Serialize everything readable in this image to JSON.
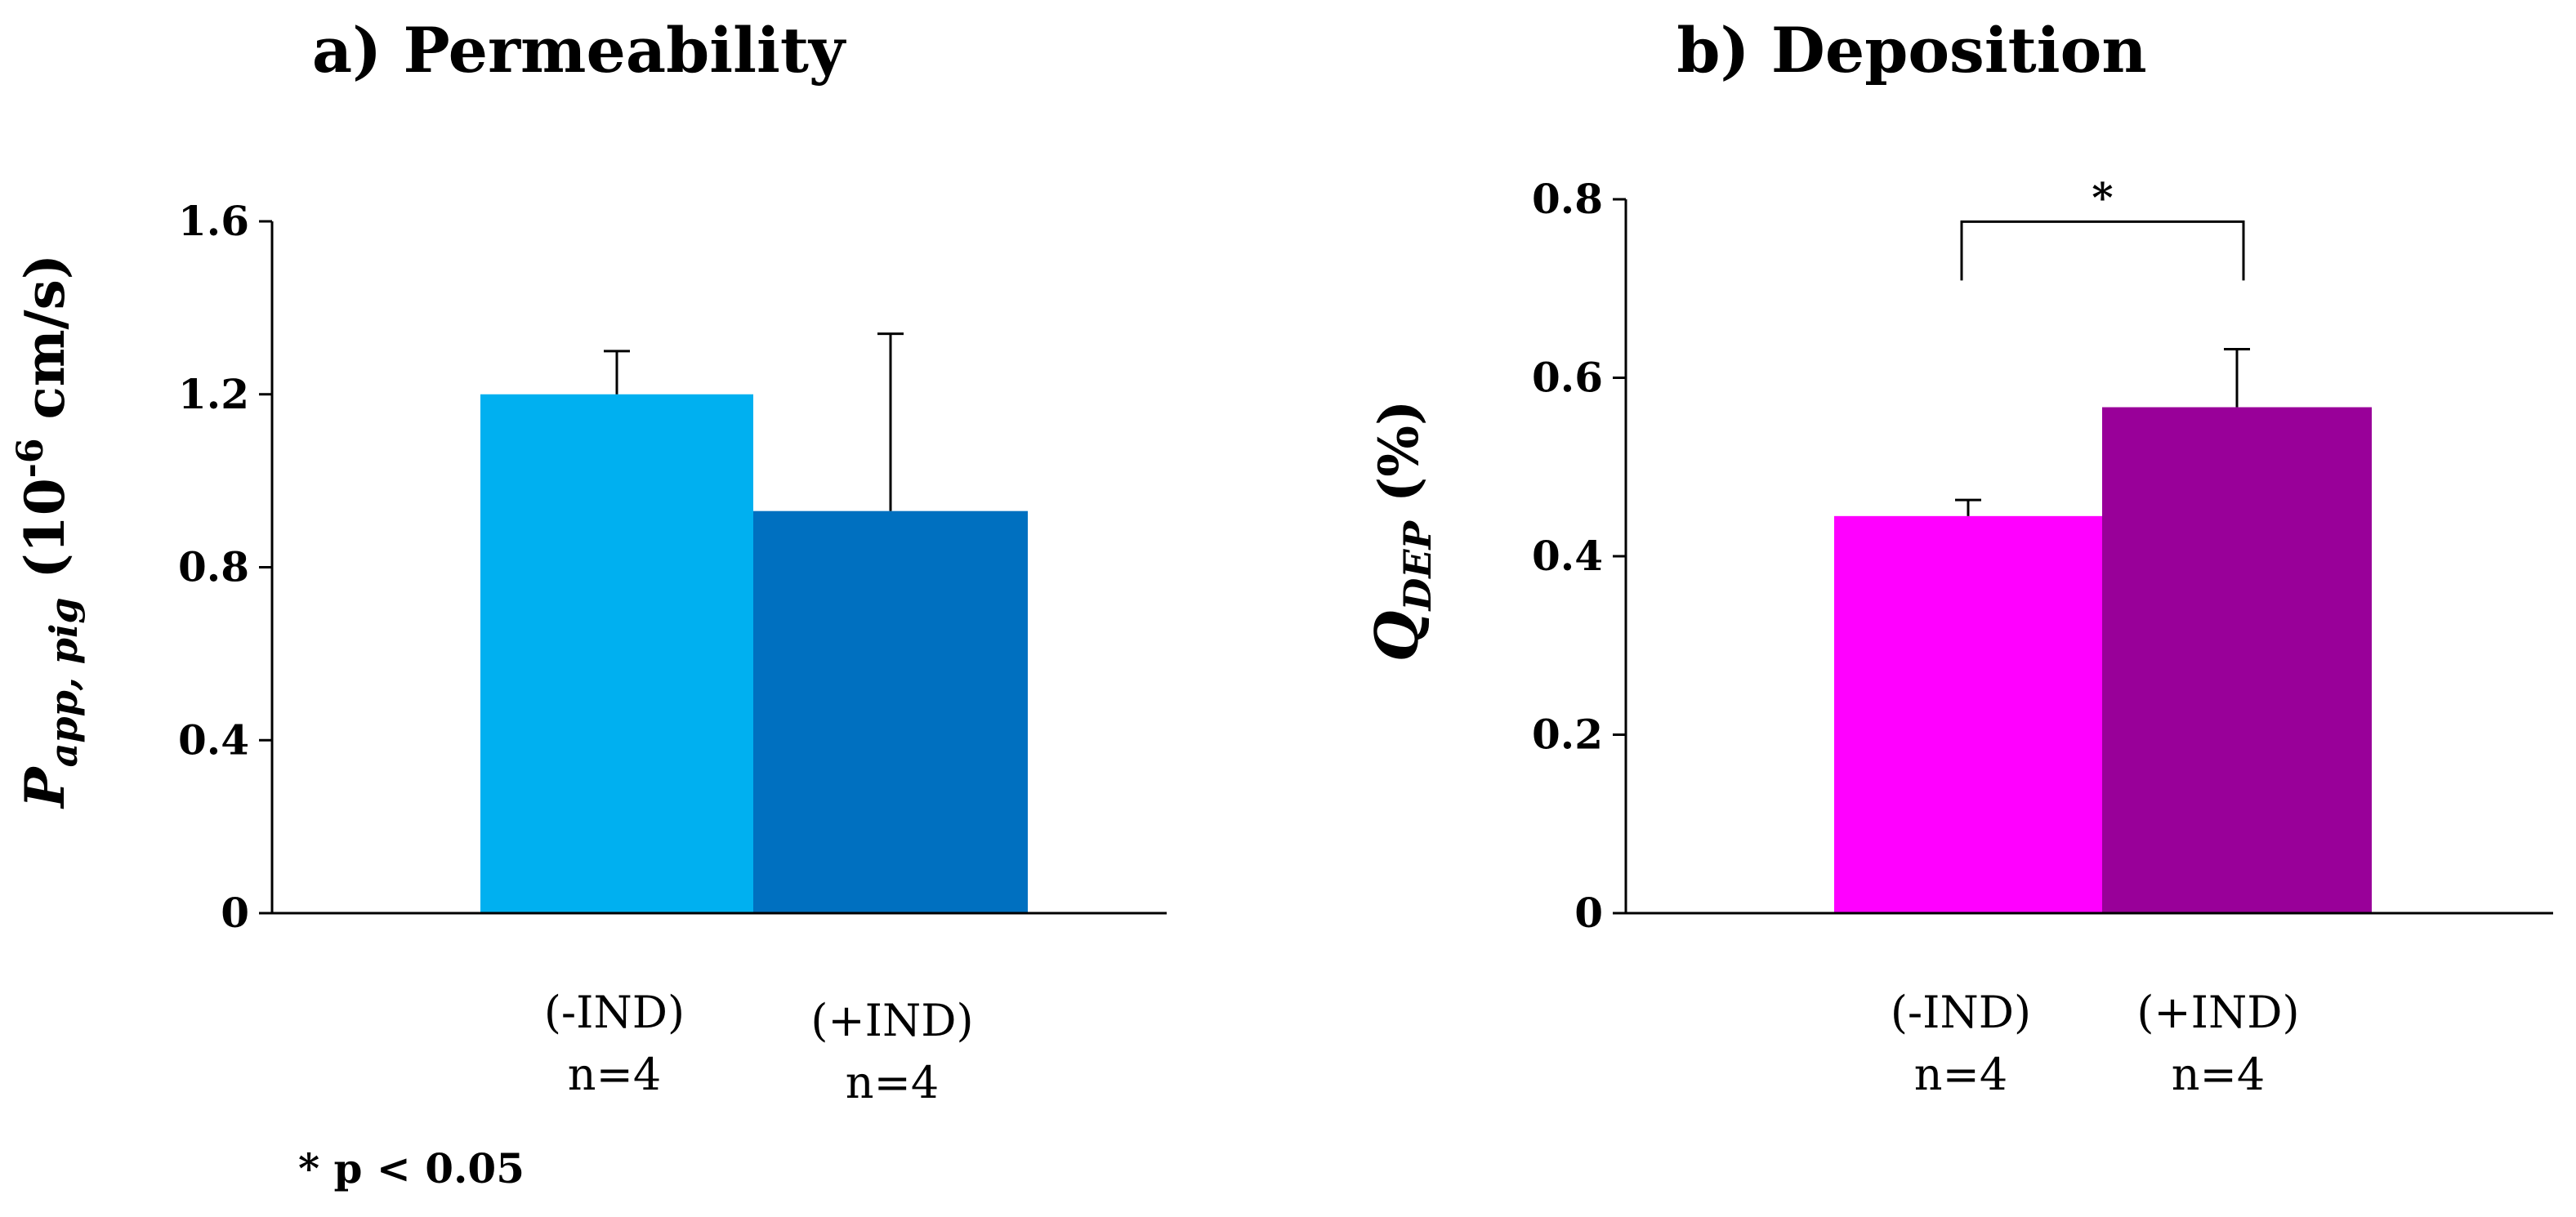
{
  "footnote": "* p < 0.05",
  "chart_data": [
    {
      "type": "bar",
      "title": "a) Permeability",
      "ylabel": {
        "main": "P",
        "subscript": "app, pig",
        "unit_prefix": " (10",
        "superscript": "-6",
        "unit_suffix": " cm/s)"
      },
      "xlabel": "",
      "categories": [
        "(-IND)",
        "(+IND)"
      ],
      "sample_sizes": [
        "n=4",
        "n=4"
      ],
      "values": [
        1.2,
        0.93
      ],
      "errors": [
        0.1,
        0.41
      ],
      "colors": [
        "#00B0F0",
        "#0070C0"
      ],
      "ylim": [
        0,
        1.6
      ],
      "yticks": [
        0,
        0.4,
        0.8,
        1.2,
        1.6
      ],
      "ytick_labels": [
        "0",
        "0.4",
        "0.8",
        "1.2",
        "1.6"
      ],
      "grid": false
    },
    {
      "type": "bar",
      "title": "b) Deposition",
      "ylabel": {
        "main": "Q",
        "subscript": "DEP",
        "unit": " (%)"
      },
      "xlabel": "",
      "categories": [
        "(-IND)",
        "(+IND)"
      ],
      "sample_sizes": [
        "n=4",
        "n=4"
      ],
      "values": [
        0.445,
        0.567
      ],
      "errors": [
        0.018,
        0.065
      ],
      "colors": [
        "#FF00FF",
        "#990099"
      ],
      "ylim": [
        0,
        0.8
      ],
      "yticks": [
        0,
        0.2,
        0.4,
        0.6,
        0.8
      ],
      "ytick_labels": [
        "0",
        "0.2",
        "0.4",
        "0.6",
        "0.8"
      ],
      "significance": {
        "label": "*",
        "between": [
          0,
          1
        ],
        "bracket_y": 0.775
      },
      "grid": false
    }
  ]
}
